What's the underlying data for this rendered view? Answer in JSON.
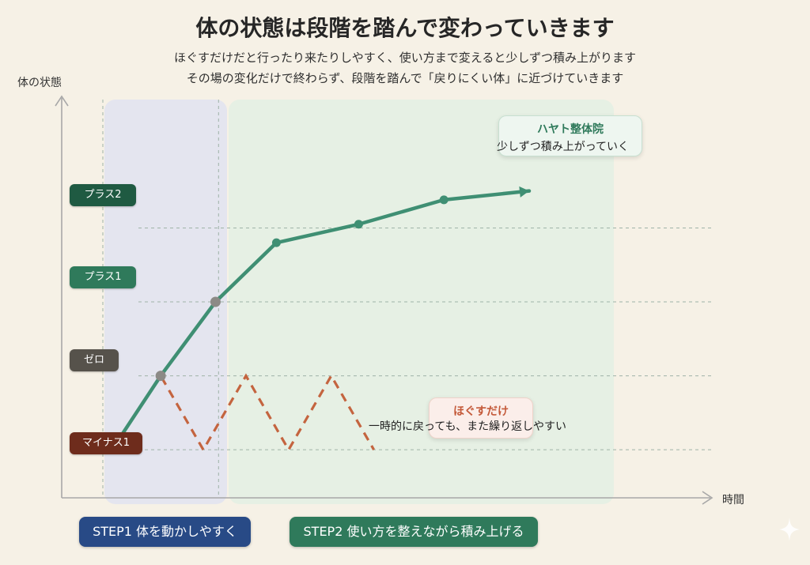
{
  "title": "体の状態は段階を踏んで変わっていきます",
  "subtitle_lines": [
    "ほぐすだけだと行ったり来たりしやすく、使い方まで変えると少しずつ積み上がります",
    "その場の変化だけで終わらず、段階を踏んで「戻りにくい体」に近づけていきます"
  ],
  "colors": {
    "green_line": "#3f8f73",
    "red_line": "#c4643f",
    "gridline": "#9fb3a8",
    "axis": "#a8a8a8"
  },
  "chart_data": {
    "type": "line",
    "xlabel": "時間",
    "ylabel": "体の状態",
    "y_levels": [
      "マイナス1",
      "ゼロ",
      "プラス1",
      "プラス2"
    ],
    "x_range": [
      0,
      10
    ],
    "y_range": [
      -1.65,
      3.8
    ],
    "phases": [
      {
        "name": "STEP1 体を動かしやすく",
        "x_start": 0,
        "x_end": 1.9
      },
      {
        "name": "STEP2 使い方を整えながら積み上げる",
        "x_start": 1.9,
        "x_end": 8.0
      }
    ],
    "series": [
      {
        "name": "ハヤト整体院",
        "note": "少しずつ積み上がっていく",
        "style": "solid",
        "points": [
          [
            0.15,
            -1
          ],
          [
            0.95,
            0
          ],
          [
            1.85,
            1
          ],
          [
            2.85,
            1.8
          ],
          [
            4.2,
            2.05
          ],
          [
            5.6,
            2.38
          ],
          [
            7.0,
            2.5
          ]
        ],
        "markers": [
          [
            0.95,
            0
          ],
          [
            1.85,
            1
          ],
          [
            2.85,
            1.8
          ],
          [
            4.2,
            2.05
          ],
          [
            5.6,
            2.38
          ]
        ]
      },
      {
        "name": "ほぐすだけ",
        "note": "一時的に戻っても、また繰り返しやすい",
        "style": "dashed",
        "points": [
          [
            0.15,
            -1
          ],
          [
            0.95,
            0
          ],
          [
            1.65,
            -1
          ],
          [
            2.35,
            0
          ],
          [
            3.05,
            -1
          ],
          [
            3.75,
            0
          ],
          [
            4.45,
            -1
          ]
        ]
      }
    ]
  }
}
